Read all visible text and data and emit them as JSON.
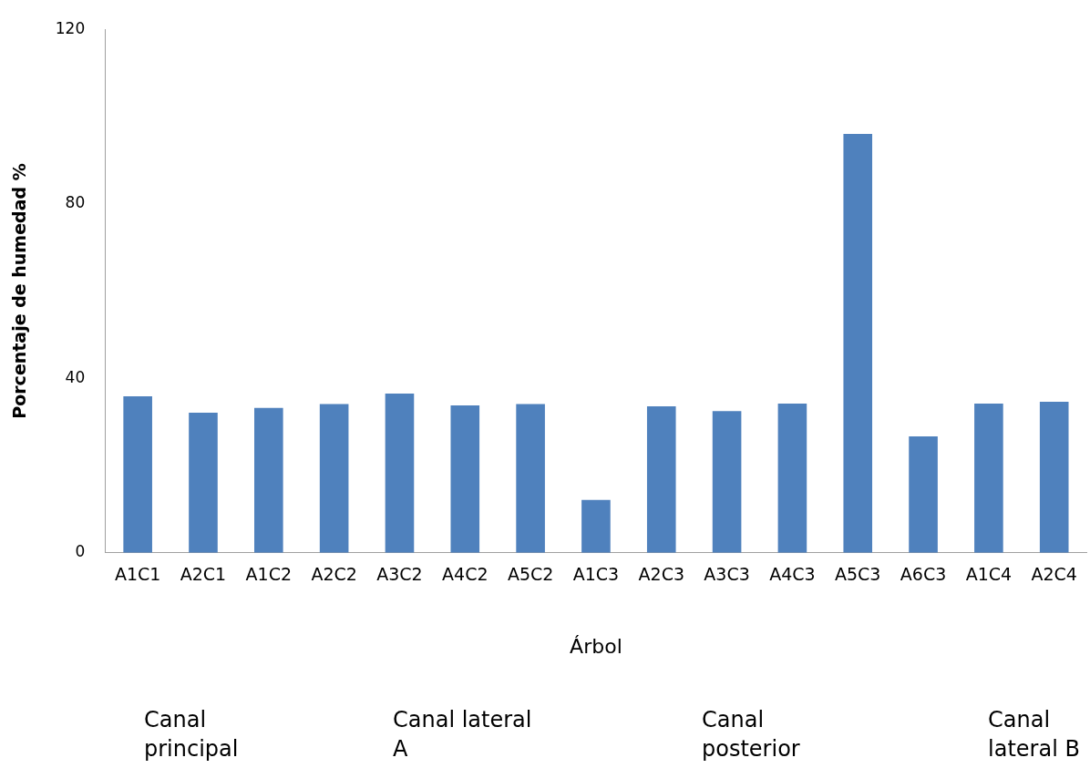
{
  "chart_data": {
    "type": "bar",
    "xlabel": "Árbol",
    "ylabel": "Porcentaje de humedad %",
    "categories": [
      "A1C1",
      "A2C1",
      "A1C2",
      "A2C2",
      "A3C2",
      "A4C2",
      "A5C2",
      "A1C3",
      "A2C3",
      "A3C3",
      "A4C3",
      "A5C3",
      "A6C3",
      "A1C4",
      "A2C4"
    ],
    "values": [
      35.9,
      32.1,
      33.2,
      34.1,
      36.5,
      33.8,
      34.1,
      12.1,
      33.6,
      32.5,
      34.2,
      96.0,
      26.7,
      34.2,
      34.6
    ],
    "color": "#4f81bd",
    "ylim": [
      0,
      120
    ],
    "yticks": [
      0,
      40,
      80,
      120
    ],
    "grid": false,
    "legend": false,
    "annotations": [
      "Canal\nprincipal",
      "Canal lateral\nA",
      "Canal\nposterior",
      "Canal\nlateral B"
    ]
  }
}
